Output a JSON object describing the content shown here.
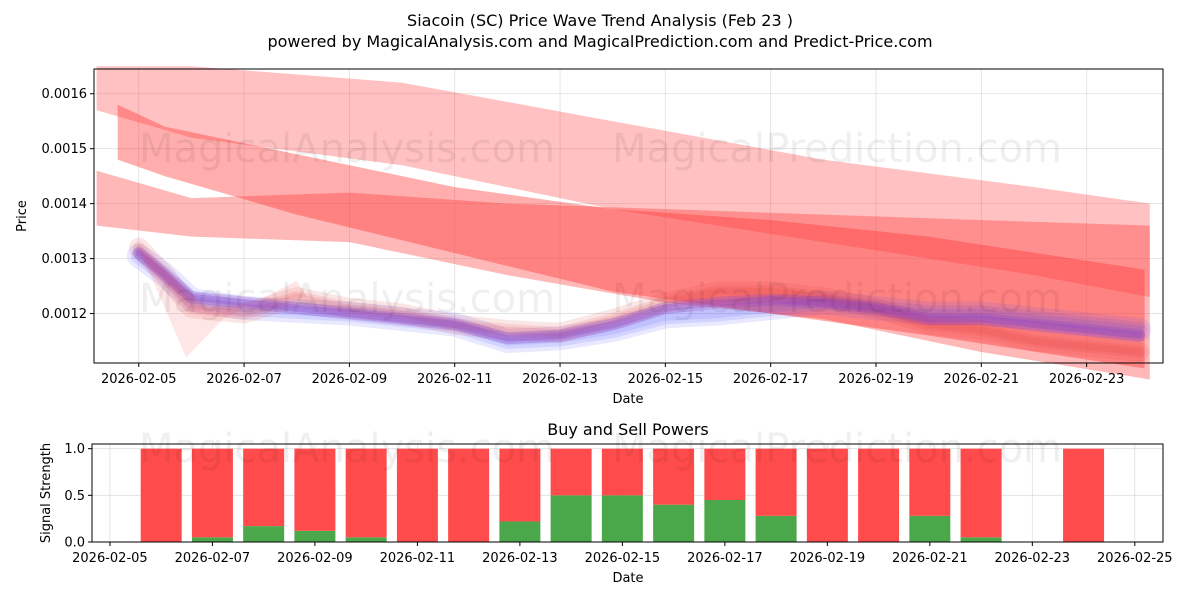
{
  "title": "Siacoin (SC) Price Wave Trend Analysis (Feb 23 )",
  "subtitle": "powered by MagicalAnalysis.com and MagicalPrediction.com and Predict-Price.com",
  "watermarks": [
    "MagicalAnalysis.com",
    "MagicalPrediction.com"
  ],
  "colors": {
    "buy": "#4aa84a",
    "sell": "#ff4b4b",
    "band": "#ff3333",
    "price_blue": "#4444ff",
    "price_red": "#dd3333"
  },
  "chart_data": [
    {
      "type": "line",
      "xlabel": "Date",
      "ylabel": "Price",
      "xlim": [
        -0.85,
        19.45
      ],
      "ylim": [
        0.00111,
        0.001645
      ],
      "x_ticks": [
        {
          "x": 0,
          "label": "2026-02-05"
        },
        {
          "x": 2,
          "label": "2026-02-07"
        },
        {
          "x": 4,
          "label": "2026-02-09"
        },
        {
          "x": 6,
          "label": "2026-02-11"
        },
        {
          "x": 8,
          "label": "2026-02-13"
        },
        {
          "x": 10,
          "label": "2026-02-15"
        },
        {
          "x": 12,
          "label": "2026-02-17"
        },
        {
          "x": 14,
          "label": "2026-02-19"
        },
        {
          "x": 16,
          "label": "2026-02-21"
        },
        {
          "x": 18,
          "label": "2026-02-23"
        }
      ],
      "y_ticks": [
        {
          "y": 0.0012,
          "label": "0.0012"
        },
        {
          "y": 0.0013,
          "label": "0.0013"
        },
        {
          "y": 0.0014,
          "label": "0.0014"
        },
        {
          "y": 0.0015,
          "label": "0.0015"
        },
        {
          "y": 0.0016,
          "label": "0.0016"
        }
      ],
      "bands": [
        {
          "name": "upper-band",
          "opacity": 0.3,
          "x": [
            -0.8,
            1.0,
            5.0,
            9.0,
            13.0,
            17.0,
            19.2
          ],
          "upper": [
            0.00165,
            0.00165,
            0.00162,
            0.00155,
            0.00148,
            0.00143,
            0.0014
          ],
          "lower": [
            0.00157,
            0.00152,
            0.00147,
            0.00139,
            0.00133,
            0.00127,
            0.00123
          ]
        },
        {
          "name": "middle-band",
          "opacity": 0.4,
          "x": [
            -0.4,
            0.5,
            3.0,
            6.0,
            9.0,
            12.0,
            15.0,
            19.1
          ],
          "upper": [
            0.00158,
            0.00154,
            0.00149,
            0.00143,
            0.00139,
            0.00137,
            0.00134,
            0.00128
          ],
          "lower": [
            0.00148,
            0.00145,
            0.00138,
            0.00131,
            0.00124,
            0.0012,
            0.00116,
            0.0011
          ]
        },
        {
          "name": "lower-band",
          "opacity": 0.35,
          "x": [
            -0.8,
            1.0,
            4.0,
            7.0,
            10.0,
            13.0,
            16.0,
            19.2
          ],
          "upper": [
            0.00146,
            0.00141,
            0.00142,
            0.0014,
            0.00139,
            0.00138,
            0.00137,
            0.00136
          ],
          "lower": [
            0.00136,
            0.00134,
            0.00133,
            0.00127,
            0.00122,
            0.00119,
            0.00113,
            0.00108
          ]
        }
      ],
      "series": [
        {
          "name": "price-blue",
          "x": [
            0,
            0.5,
            1,
            2,
            3,
            4,
            5,
            6,
            7,
            8,
            9,
            10,
            11,
            12,
            13,
            14,
            15,
            16,
            17,
            18,
            19
          ],
          "values": [
            0.001305,
            0.00127,
            0.001225,
            0.00121,
            0.001205,
            0.0012,
            0.00119,
            0.00118,
            0.00115,
            0.001155,
            0.00117,
            0.001195,
            0.0012,
            0.00121,
            0.00122,
            0.00121,
            0.0012,
            0.0012,
            0.00119,
            0.00118,
            0.00117
          ]
        },
        {
          "name": "price-red",
          "x": [
            0,
            0.5,
            1,
            2,
            3,
            4,
            5,
            6,
            7,
            8,
            9,
            10,
            11,
            12,
            13,
            14,
            15,
            16,
            17,
            18,
            19
          ],
          "values": [
            0.00132,
            0.00127,
            0.00121,
            0.0012,
            0.00123,
            0.00121,
            0.0012,
            0.00118,
            0.00117,
            0.001165,
            0.00119,
            0.00122,
            0.00124,
            0.00124,
            0.00123,
            0.00121,
            0.00118,
            0.00117,
            0.00115,
            0.00114,
            0.00113
          ]
        },
        {
          "name": "price-purple",
          "x": [
            0,
            0.5,
            1,
            2,
            3,
            4,
            5,
            6,
            7,
            8,
            9,
            10,
            11,
            12,
            13,
            14,
            15,
            16,
            17,
            18,
            19
          ],
          "values": [
            0.00131,
            0.00127,
            0.00123,
            0.00122,
            0.00121,
            0.0012,
            0.00119,
            0.00118,
            0.001155,
            0.00116,
            0.00118,
            0.00121,
            0.00122,
            0.001225,
            0.00122,
            0.00121,
            0.00119,
            0.00119,
            0.00118,
            0.00117,
            0.00116
          ]
        }
      ]
    },
    {
      "type": "bar",
      "title": "Buy and Sell Powers",
      "xlabel": "Date",
      "ylabel": "Signal Strength",
      "xlim": [
        -0.35,
        20.55
      ],
      "ylim": [
        0,
        1.05
      ],
      "x_ticks": [
        {
          "x": 0,
          "label": "2026-02-05"
        },
        {
          "x": 2,
          "label": "2026-02-07"
        },
        {
          "x": 4,
          "label": "2026-02-09"
        },
        {
          "x": 6,
          "label": "2026-02-11"
        },
        {
          "x": 8,
          "label": "2026-02-13"
        },
        {
          "x": 10,
          "label": "2026-02-15"
        },
        {
          "x": 12,
          "label": "2026-02-17"
        },
        {
          "x": 14,
          "label": "2026-02-19"
        },
        {
          "x": 16,
          "label": "2026-02-21"
        },
        {
          "x": 18,
          "label": "2026-02-23"
        },
        {
          "x": 20,
          "label": "2026-02-25"
        }
      ],
      "y_ticks": [
        {
          "y": 0.0,
          "label": "0.0"
        },
        {
          "y": 0.5,
          "label": "0.5"
        },
        {
          "y": 1.0,
          "label": "1.0"
        }
      ],
      "bar_x": [
        1,
        2,
        3,
        4,
        5,
        6,
        7,
        8,
        9,
        10,
        11,
        12,
        13,
        14,
        15,
        16,
        17,
        19
      ],
      "series": [
        {
          "name": "Buy",
          "values": [
            0.0,
            0.05,
            0.17,
            0.12,
            0.05,
            0.0,
            0.0,
            0.22,
            0.5,
            0.5,
            0.4,
            0.45,
            0.28,
            0.0,
            0.0,
            0.28,
            0.05,
            0.0
          ]
        },
        {
          "name": "Sell",
          "values": [
            1.0,
            0.95,
            0.83,
            0.88,
            0.95,
            1.0,
            1.0,
            0.78,
            0.5,
            0.5,
            0.6,
            0.55,
            0.72,
            1.0,
            1.0,
            0.72,
            0.95,
            1.0
          ]
        }
      ]
    }
  ]
}
